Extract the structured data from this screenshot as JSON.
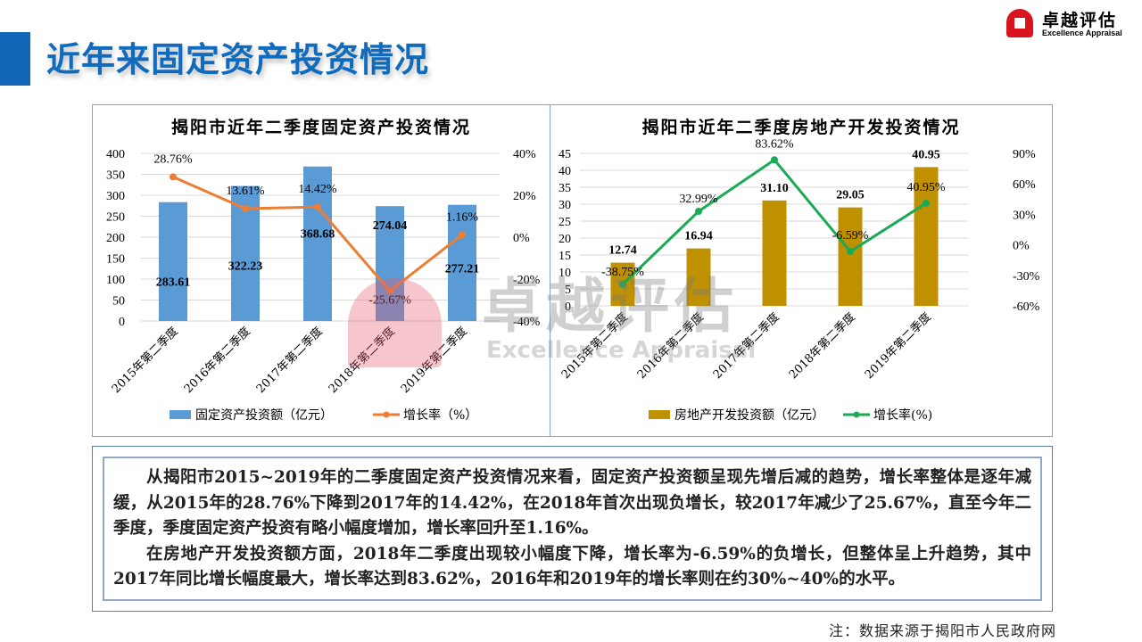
{
  "header": {
    "title": "近年来固定资产投资情况"
  },
  "logo": {
    "cn": "卓越评估",
    "en": "Excellence Appraisal"
  },
  "watermark": {
    "cn": "卓越评估",
    "en": "Excellence Appraisal"
  },
  "chart_data": [
    {
      "type": "bar+line",
      "title": "揭阳市近年二季度固定资产投资情况",
      "categories": [
        "2015年第二季度",
        "2016年第二季度",
        "2017年第二季度",
        "2018年第二季度",
        "2019年第二季度"
      ],
      "bar_series": {
        "name": "固定资产投资额（亿元）",
        "values": [
          283.61,
          322.23,
          368.68,
          274.04,
          277.21
        ],
        "labels": [
          "283.61",
          "322.23",
          "368.68",
          "274.04",
          "277.21"
        ],
        "color": "#5b9bd5"
      },
      "line_series": {
        "name": "增长率（%）",
        "values": [
          28.76,
          13.61,
          14.42,
          -25.67,
          1.16
        ],
        "labels": [
          "28.76%",
          "13.61%",
          "14.42%",
          "-25.67%",
          "1.16%"
        ],
        "color": "#ed7d31"
      },
      "ylim": [
        0,
        400
      ],
      "yticks": [
        "0",
        "50",
        "100",
        "150",
        "200",
        "250",
        "300",
        "350",
        "400"
      ],
      "y2lim": [
        -40,
        40
      ],
      "y2ticks": [
        "-40%",
        "-20%",
        "0%",
        "20%",
        "40%"
      ],
      "grid": true,
      "legend": "bottom"
    },
    {
      "type": "bar+line",
      "title": "揭阳市近年二季度房地产开发投资情况",
      "categories": [
        "2015年第二季度",
        "2016年第二季度",
        "2017年第二季度",
        "2018年第二季度",
        "2019年第二季度"
      ],
      "bar_series": {
        "name": "房地产开发投资额（亿元）",
        "values": [
          12.74,
          16.94,
          31.1,
          29.05,
          40.95
        ],
        "labels": [
          "12.74",
          "16.94",
          "31.10",
          "29.05",
          "40.95"
        ],
        "color": "#bf9000"
      },
      "line_series": {
        "name": "增长率(%)",
        "values": [
          -38.75,
          32.99,
          83.62,
          -6.59,
          40.95
        ],
        "labels": [
          "-38.75%",
          "32.99%",
          "83.62%",
          "-6.59%",
          "40.95%"
        ],
        "color": "#1aaa55"
      },
      "ylim": [
        0,
        45
      ],
      "yticks": [
        "0",
        "5",
        "10",
        "15",
        "20",
        "25",
        "30",
        "35",
        "40",
        "45"
      ],
      "y2lim": [
        -60,
        90
      ],
      "y2ticks": [
        "-60%",
        "-30%",
        "0%",
        "30%",
        "60%",
        "90%"
      ],
      "grid": true,
      "legend": "bottom"
    }
  ],
  "summary": {
    "p1": "从揭阳市2015~2019年的二季度固定资产投资情况来看，固定资产投资额呈现先增后减的趋势，增长率整体是逐年减缓，从2015年的28.76%下降到2017年的14.42%，在2018年首次出现负增长，较2017年减少了25.67%，直至今年二季度，季度固定资产投资有略小幅度增加，增长率回升至1.16%。",
    "p2": "在房地产开发投资额方面，2018年二季度出现较小幅度下降，增长率为-6.59%的负增长，但整体呈上升趋势，其中2017年同比增长幅度最大，增长率达到83.62%，2016年和2019年的增长率则在约30%~40%的水平。"
  },
  "footnote": "注：数据来源于揭阳市人民政府网"
}
